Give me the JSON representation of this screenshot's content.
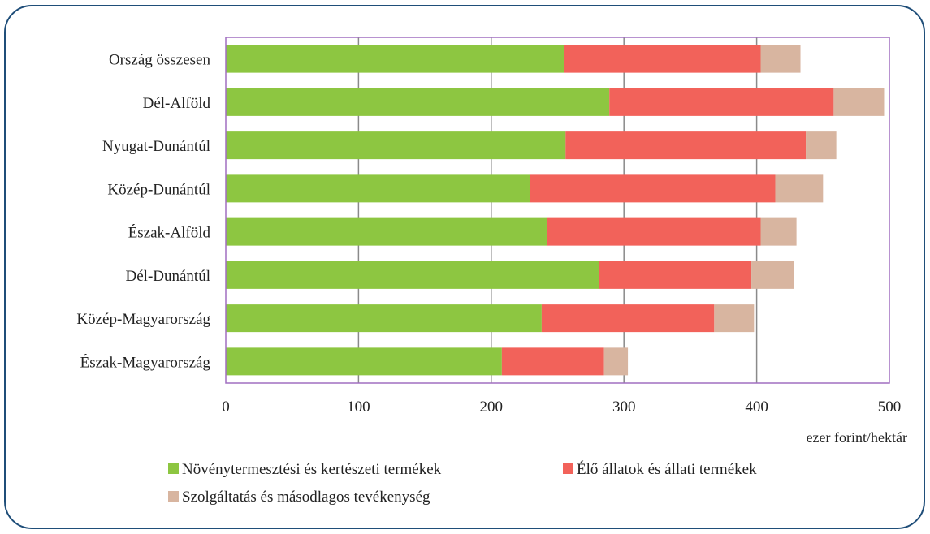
{
  "chart_data": {
    "type": "bar",
    "orientation": "horizontal",
    "stacked": true,
    "categories": [
      "Ország összesen",
      "Dél-Alföld",
      "Nyugat-Dunántúl",
      "Közép-Dunántúl",
      "Észak-Alföld",
      "Dél-Dunántúl",
      "Közép-Magyarország",
      "Észak-Magyarország"
    ],
    "series": [
      {
        "name": "Növénytermesztési és kertészeti termékek",
        "color": "#8dc641",
        "values": [
          255,
          289,
          256,
          229,
          242,
          281,
          238,
          208
        ]
      },
      {
        "name": "Élő állatok és állati termékek",
        "color": "#f2625a",
        "values": [
          148,
          169,
          181,
          185,
          161,
          115,
          130,
          77
        ]
      },
      {
        "name": "Szolgáltatás és másodlagos tevékenység",
        "color": "#d8b5a0",
        "values": [
          30,
          38,
          23,
          36,
          27,
          32,
          30,
          18
        ]
      }
    ],
    "xlabel": "ezer forint/hektár",
    "xlim": [
      0,
      500
    ],
    "xticks": [
      0,
      100,
      200,
      300,
      400,
      500
    ],
    "grid": true,
    "legend_position": "bottom",
    "plot_border_color": "#a16fc1",
    "gridline_color": "#8a8a8a"
  }
}
